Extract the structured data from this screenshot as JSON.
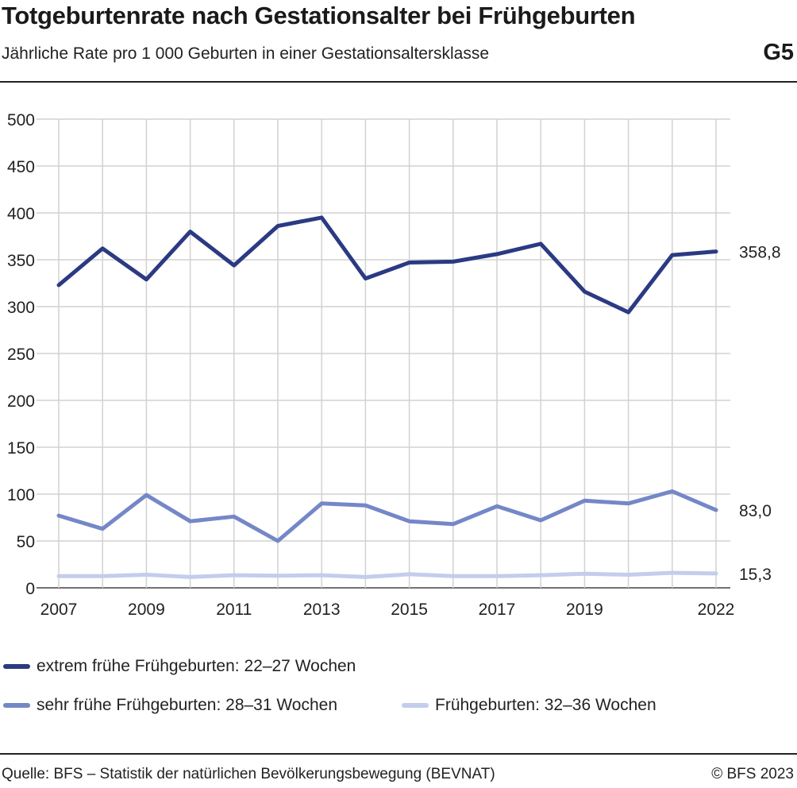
{
  "header": {
    "title": "Totgeburtenrate nach Gestationsalter bei Frühgeburten",
    "subtitle": "Jährliche Rate pro 1 000 Geburten in einer Gestationsaltersklasse",
    "code": "G5"
  },
  "footer": {
    "source": "Quelle: BFS – Statistik der natürlichen Bevölkerungsbewegung (BEVNAT)",
    "copyright": "© BFS 2023"
  },
  "chart_data": {
    "type": "line",
    "x": [
      2007,
      2008,
      2009,
      2010,
      2011,
      2012,
      2013,
      2014,
      2015,
      2016,
      2017,
      2018,
      2019,
      2020,
      2021,
      2022
    ],
    "x_tick_labels": [
      "2007",
      "2009",
      "2011",
      "2013",
      "2015",
      "2017",
      "2019",
      "2022"
    ],
    "x_tick_values": [
      2007,
      2009,
      2011,
      2013,
      2015,
      2017,
      2019,
      2022
    ],
    "y_ticks": [
      0,
      50,
      100,
      150,
      200,
      250,
      300,
      350,
      400,
      450,
      500
    ],
    "ylim": [
      0,
      500
    ],
    "xlim": [
      2007,
      2022
    ],
    "grid": true,
    "legend_placement": "bottom",
    "series": [
      {
        "name": "extrem frühe Frühgeburten: 22–27 Wochen",
        "color": "#2b3a82",
        "values": [
          323,
          362,
          329,
          380,
          344,
          386,
          395,
          330,
          347,
          348,
          356,
          367,
          316,
          294,
          355,
          358.8
        ],
        "end_label": "358,8"
      },
      {
        "name": "sehr frühe Frühgeburten: 28–31 Wochen",
        "color": "#7487c7",
        "values": [
          77,
          63,
          99,
          71,
          76,
          50,
          90,
          88,
          71,
          68,
          87,
          72,
          93,
          90,
          103,
          83.0
        ],
        "end_label": "83,0"
      },
      {
        "name": "Frühgeburten: 32–36 Wochen",
        "color": "#c3cdec",
        "values": [
          12.5,
          12.5,
          14,
          11.5,
          13.5,
          13,
          13.5,
          11.5,
          14.5,
          12.5,
          12.5,
          13.5,
          15,
          14,
          16,
          15.3
        ],
        "end_label": "15,3"
      }
    ]
  }
}
